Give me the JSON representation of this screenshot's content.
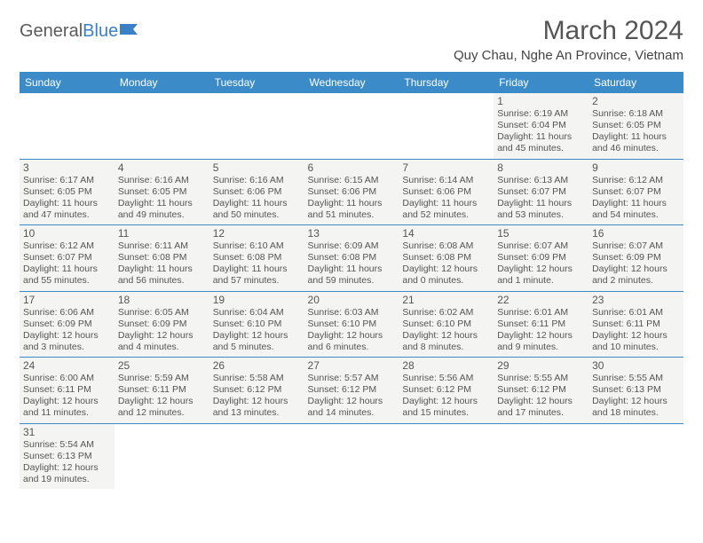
{
  "logo": {
    "part1": "General",
    "part2": "Blue"
  },
  "title": "March 2024",
  "location": "Quy Chau, Nghe An Province, Vietnam",
  "colors": {
    "header_bg": "#3b8bc9",
    "header_text": "#ffffff",
    "cell_bg": "#f4f4f2",
    "border": "#3b8bc9",
    "text": "#555555",
    "logo_gray": "#5a5a5a",
    "logo_blue": "#3b7fc4"
  },
  "dow": [
    "Sunday",
    "Monday",
    "Tuesday",
    "Wednesday",
    "Thursday",
    "Friday",
    "Saturday"
  ],
  "first_weekday": 5,
  "days": [
    {
      "n": 1,
      "sr": "6:19 AM",
      "ss": "6:04 PM",
      "dl": "11 hours and 45 minutes."
    },
    {
      "n": 2,
      "sr": "6:18 AM",
      "ss": "6:05 PM",
      "dl": "11 hours and 46 minutes."
    },
    {
      "n": 3,
      "sr": "6:17 AM",
      "ss": "6:05 PM",
      "dl": "11 hours and 47 minutes."
    },
    {
      "n": 4,
      "sr": "6:16 AM",
      "ss": "6:05 PM",
      "dl": "11 hours and 49 minutes."
    },
    {
      "n": 5,
      "sr": "6:16 AM",
      "ss": "6:06 PM",
      "dl": "11 hours and 50 minutes."
    },
    {
      "n": 6,
      "sr": "6:15 AM",
      "ss": "6:06 PM",
      "dl": "11 hours and 51 minutes."
    },
    {
      "n": 7,
      "sr": "6:14 AM",
      "ss": "6:06 PM",
      "dl": "11 hours and 52 minutes."
    },
    {
      "n": 8,
      "sr": "6:13 AM",
      "ss": "6:07 PM",
      "dl": "11 hours and 53 minutes."
    },
    {
      "n": 9,
      "sr": "6:12 AM",
      "ss": "6:07 PM",
      "dl": "11 hours and 54 minutes."
    },
    {
      "n": 10,
      "sr": "6:12 AM",
      "ss": "6:07 PM",
      "dl": "11 hours and 55 minutes."
    },
    {
      "n": 11,
      "sr": "6:11 AM",
      "ss": "6:08 PM",
      "dl": "11 hours and 56 minutes."
    },
    {
      "n": 12,
      "sr": "6:10 AM",
      "ss": "6:08 PM",
      "dl": "11 hours and 57 minutes."
    },
    {
      "n": 13,
      "sr": "6:09 AM",
      "ss": "6:08 PM",
      "dl": "11 hours and 59 minutes."
    },
    {
      "n": 14,
      "sr": "6:08 AM",
      "ss": "6:08 PM",
      "dl": "12 hours and 0 minutes."
    },
    {
      "n": 15,
      "sr": "6:07 AM",
      "ss": "6:09 PM",
      "dl": "12 hours and 1 minute."
    },
    {
      "n": 16,
      "sr": "6:07 AM",
      "ss": "6:09 PM",
      "dl": "12 hours and 2 minutes."
    },
    {
      "n": 17,
      "sr": "6:06 AM",
      "ss": "6:09 PM",
      "dl": "12 hours and 3 minutes."
    },
    {
      "n": 18,
      "sr": "6:05 AM",
      "ss": "6:09 PM",
      "dl": "12 hours and 4 minutes."
    },
    {
      "n": 19,
      "sr": "6:04 AM",
      "ss": "6:10 PM",
      "dl": "12 hours and 5 minutes."
    },
    {
      "n": 20,
      "sr": "6:03 AM",
      "ss": "6:10 PM",
      "dl": "12 hours and 6 minutes."
    },
    {
      "n": 21,
      "sr": "6:02 AM",
      "ss": "6:10 PM",
      "dl": "12 hours and 8 minutes."
    },
    {
      "n": 22,
      "sr": "6:01 AM",
      "ss": "6:11 PM",
      "dl": "12 hours and 9 minutes."
    },
    {
      "n": 23,
      "sr": "6:01 AM",
      "ss": "6:11 PM",
      "dl": "12 hours and 10 minutes."
    },
    {
      "n": 24,
      "sr": "6:00 AM",
      "ss": "6:11 PM",
      "dl": "12 hours and 11 minutes."
    },
    {
      "n": 25,
      "sr": "5:59 AM",
      "ss": "6:11 PM",
      "dl": "12 hours and 12 minutes."
    },
    {
      "n": 26,
      "sr": "5:58 AM",
      "ss": "6:12 PM",
      "dl": "12 hours and 13 minutes."
    },
    {
      "n": 27,
      "sr": "5:57 AM",
      "ss": "6:12 PM",
      "dl": "12 hours and 14 minutes."
    },
    {
      "n": 28,
      "sr": "5:56 AM",
      "ss": "6:12 PM",
      "dl": "12 hours and 15 minutes."
    },
    {
      "n": 29,
      "sr": "5:55 AM",
      "ss": "6:12 PM",
      "dl": "12 hours and 17 minutes."
    },
    {
      "n": 30,
      "sr": "5:55 AM",
      "ss": "6:13 PM",
      "dl": "12 hours and 18 minutes."
    },
    {
      "n": 31,
      "sr": "5:54 AM",
      "ss": "6:13 PM",
      "dl": "12 hours and 19 minutes."
    }
  ],
  "labels": {
    "sunrise": "Sunrise:",
    "sunset": "Sunset:",
    "daylight": "Daylight:"
  }
}
